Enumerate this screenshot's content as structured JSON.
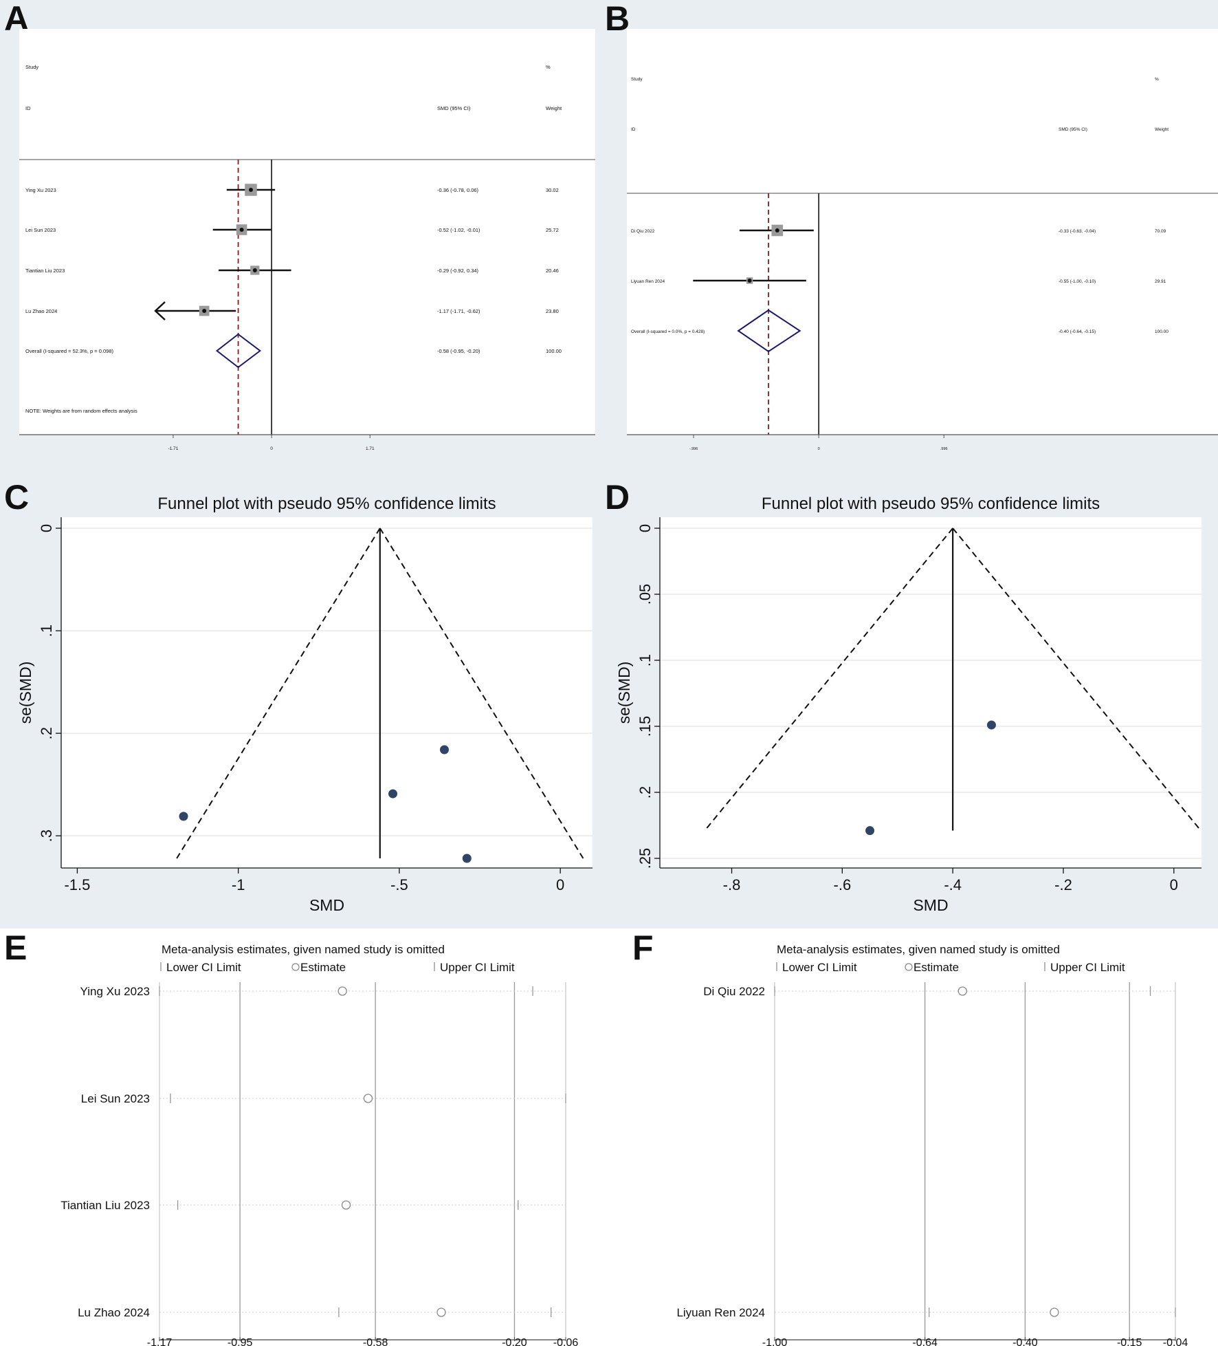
{
  "panel_letters": [
    "A",
    "B",
    "C",
    "D",
    "E",
    "F"
  ],
  "colors": {
    "background_tint": "#e8eef2",
    "marker_navy": "#2f4466",
    "diamond_navy": "#1a1a6e",
    "dashed_red": "#8b1a1a",
    "grid": "#e5e5e5"
  },
  "chart_data": [
    {
      "panel": "A",
      "type": "forest",
      "header": {
        "study": "Study",
        "id": "ID",
        "effect": "SMD (95% CI)",
        "pct": "%",
        "weight": "Weight"
      },
      "xlim": [
        -2.02,
        4.0
      ],
      "ticks": [
        -1.71,
        0,
        1.71
      ],
      "tick_labels": [
        "-1.71",
        "0",
        "1.71"
      ],
      "overall_line": -0.58,
      "studies": [
        {
          "label": "Ying Xu 2023",
          "est": -0.36,
          "lo": -0.78,
          "hi": 0.06,
          "ci_text": "-0.36 (-0.78, 0.06)",
          "weight": "30.02"
        },
        {
          "label": "Lei Sun 2023",
          "est": -0.52,
          "lo": -1.02,
          "hi": -0.01,
          "ci_text": "-0.52 (-1.02, -0.01)",
          "weight": "25.72"
        },
        {
          "label": "Tiantian Liu 2023",
          "est": -0.29,
          "lo": -0.92,
          "hi": 0.34,
          "ci_text": "-0.29 (-0.92, 0.34)",
          "weight": "20.46"
        },
        {
          "label": "Lu Zhao 2024",
          "est": -1.17,
          "lo": -1.71,
          "hi": -0.62,
          "ci_text": "-1.17 (-1.71, -0.62)",
          "weight": "23.80",
          "arrow_left": true
        }
      ],
      "overall": {
        "label": "Overall  (I-squared = 52.3%, p = 0.098)",
        "est": -0.58,
        "lo": -0.95,
        "hi": -0.2,
        "ci_text": "-0.58 (-0.95, -0.20)",
        "weight": "100.00"
      },
      "note": "NOTE: Weights are from random effects analysis"
    },
    {
      "panel": "B",
      "type": "forest",
      "header": {
        "study": "Study",
        "id": "ID",
        "effect": "SMD (95% CI)",
        "pct": "%",
        "weight": "Weight"
      },
      "xlim": [
        -1.1,
        1.7
      ],
      "ticks": [
        -0.996,
        0,
        0.996
      ],
      "tick_labels": [
        "-.996",
        "0",
        ".996"
      ],
      "overall_line": -0.4,
      "studies": [
        {
          "label": "Di Qiu 2022",
          "est": -0.33,
          "lo": -0.63,
          "hi": -0.04,
          "ci_text": "-0.33 (-0.63, -0.04)",
          "weight": "70.09"
        },
        {
          "label": "Liyuan Ren 2024",
          "est": -0.55,
          "lo": -1.0,
          "hi": -0.1,
          "ci_text": "-0.55 (-1.00, -0.10)",
          "weight": "29.91"
        }
      ],
      "overall": {
        "label": "Overall  (I-squared = 0.0%, p = 0.428)",
        "est": -0.4,
        "lo": -0.64,
        "hi": -0.15,
        "ci_text": "-0.40 (-0.64, -0.15)",
        "weight": "100.00"
      },
      "note": ""
    },
    {
      "panel": "C",
      "type": "scatter",
      "title": "Funnel plot with pseudo 95% confidence limits",
      "xlabel": "SMD",
      "ylabel": "se(SMD)",
      "xlim": [
        -1.55,
        0.1
      ],
      "ylim": [
        0,
        0.322
      ],
      "y_reversed": true,
      "xticks": [
        -1.5,
        -1,
        -0.5,
        0
      ],
      "xtick_labels": [
        "-1.5",
        "-1",
        "-.5",
        "0"
      ],
      "yticks": [
        0,
        0.1,
        0.2,
        0.3
      ],
      "ytick_labels": [
        "0",
        ".1",
        ".2",
        ".3"
      ],
      "center": -0.56,
      "funnel_max_se": 0.322,
      "points": [
        {
          "x": -0.36,
          "y": 0.216
        },
        {
          "x": -0.52,
          "y": 0.259
        },
        {
          "x": -0.29,
          "y": 0.322
        },
        {
          "x": -1.17,
          "y": 0.281
        }
      ]
    },
    {
      "panel": "D",
      "type": "scatter",
      "title": "Funnel plot with pseudo 95% confidence limits",
      "xlabel": "SMD",
      "ylabel": "se(SMD)",
      "xlim": [
        -0.93,
        0.05
      ],
      "ylim": [
        0,
        0.25
      ],
      "y_reversed": true,
      "xticks": [
        -0.8,
        -0.6,
        -0.4,
        -0.2,
        0
      ],
      "xtick_labels": [
        "-.8",
        "-.6",
        "-.4",
        "-.2",
        "0"
      ],
      "yticks": [
        0,
        0.05,
        0.1,
        0.15,
        0.2,
        0.25
      ],
      "ytick_labels": [
        "0",
        ".05",
        ".1",
        ".15",
        ".2",
        ".25"
      ],
      "center": -0.4,
      "funnel_max_se": 0.229,
      "points": [
        {
          "x": -0.33,
          "y": 0.149
        },
        {
          "x": -0.55,
          "y": 0.229
        }
      ]
    },
    {
      "panel": "E",
      "type": "sensitivity",
      "title": "Meta-analysis estimates, given named study is omitted",
      "legend": [
        "Lower CI Limit",
        "Estimate",
        "Upper CI Limit"
      ],
      "xlim": [
        -1.17,
        -0.06
      ],
      "ticks": [
        -1.17,
        -0.95,
        -0.58,
        -0.2,
        -0.06
      ],
      "tick_labels": [
        "-1.17",
        "-0.95",
        "-0.58",
        "-0.20",
        "-0.06"
      ],
      "rows": [
        {
          "label": "Ying Xu 2023",
          "lo": -1.17,
          "est": -0.67,
          "hi": -0.15
        },
        {
          "label": "Lei Sun 2023",
          "lo": -1.14,
          "est": -0.6,
          "hi": -0.06
        },
        {
          "label": "Tiantian Liu 2023",
          "lo": -1.12,
          "est": -0.66,
          "hi": -0.19
        },
        {
          "label": "Lu Zhao 2024",
          "lo": -0.68,
          "est": -0.4,
          "hi": -0.1
        }
      ]
    },
    {
      "panel": "F",
      "type": "sensitivity",
      "title": "Meta-analysis estimates, given named study is omitted",
      "legend": [
        "Lower CI Limit",
        "Estimate",
        "Upper CI Limit"
      ],
      "xlim": [
        -1.0,
        -0.04
      ],
      "ticks": [
        -1.0,
        -0.64,
        -0.4,
        -0.15,
        -0.04
      ],
      "tick_labels": [
        "-1.00",
        "-0.64",
        "-0.40",
        "-0.15",
        "-0.04"
      ],
      "rows": [
        {
          "label": "Di Qiu 2022",
          "lo": -1.0,
          "est": -0.55,
          "hi": -0.1
        },
        {
          "label": "Liyuan Ren 2024",
          "lo": -0.63,
          "est": -0.33,
          "hi": -0.04
        }
      ]
    }
  ]
}
